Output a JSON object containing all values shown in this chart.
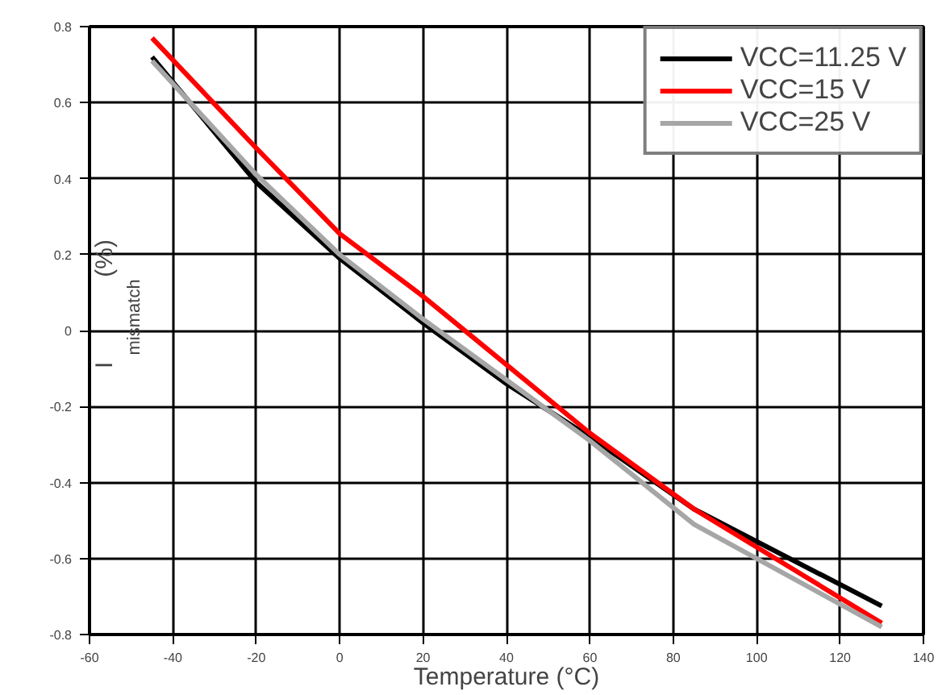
{
  "chart_data": {
    "type": "line",
    "xlabel": "Temperature (°C)",
    "ylabel": "I$_{mismatch}$(%)",
    "x": [
      -45,
      -20,
      0,
      20,
      40,
      60,
      85,
      130
    ],
    "series": [
      {
        "name": "VCC=11.25 V",
        "color": "#000000",
        "values": [
          0.72,
          0.39,
          0.19,
          0.02,
          -0.14,
          -0.28,
          -0.47,
          -0.725
        ]
      },
      {
        "name": "VCC=15 V",
        "color": "#ff0000",
        "values": [
          0.77,
          0.48,
          0.255,
          0.09,
          -0.09,
          -0.27,
          -0.47,
          -0.77
        ]
      },
      {
        "name": "VCC=25 V",
        "color": "#a6a6a6",
        "values": [
          0.71,
          0.41,
          0.2,
          0.03,
          -0.13,
          -0.29,
          -0.51,
          -0.78
        ]
      }
    ],
    "xlim": [
      -60,
      140
    ],
    "ylim": [
      -0.8,
      0.8
    ],
    "xticks": [
      -60,
      -40,
      -20,
      0,
      20,
      40,
      60,
      80,
      100,
      120,
      140
    ],
    "yticks": [
      -0.8,
      -0.6,
      -0.4,
      -0.2,
      0,
      0.2,
      0.4,
      0.6,
      0.8
    ],
    "grid": true,
    "legend": "top right",
    "line_style": "solid"
  }
}
